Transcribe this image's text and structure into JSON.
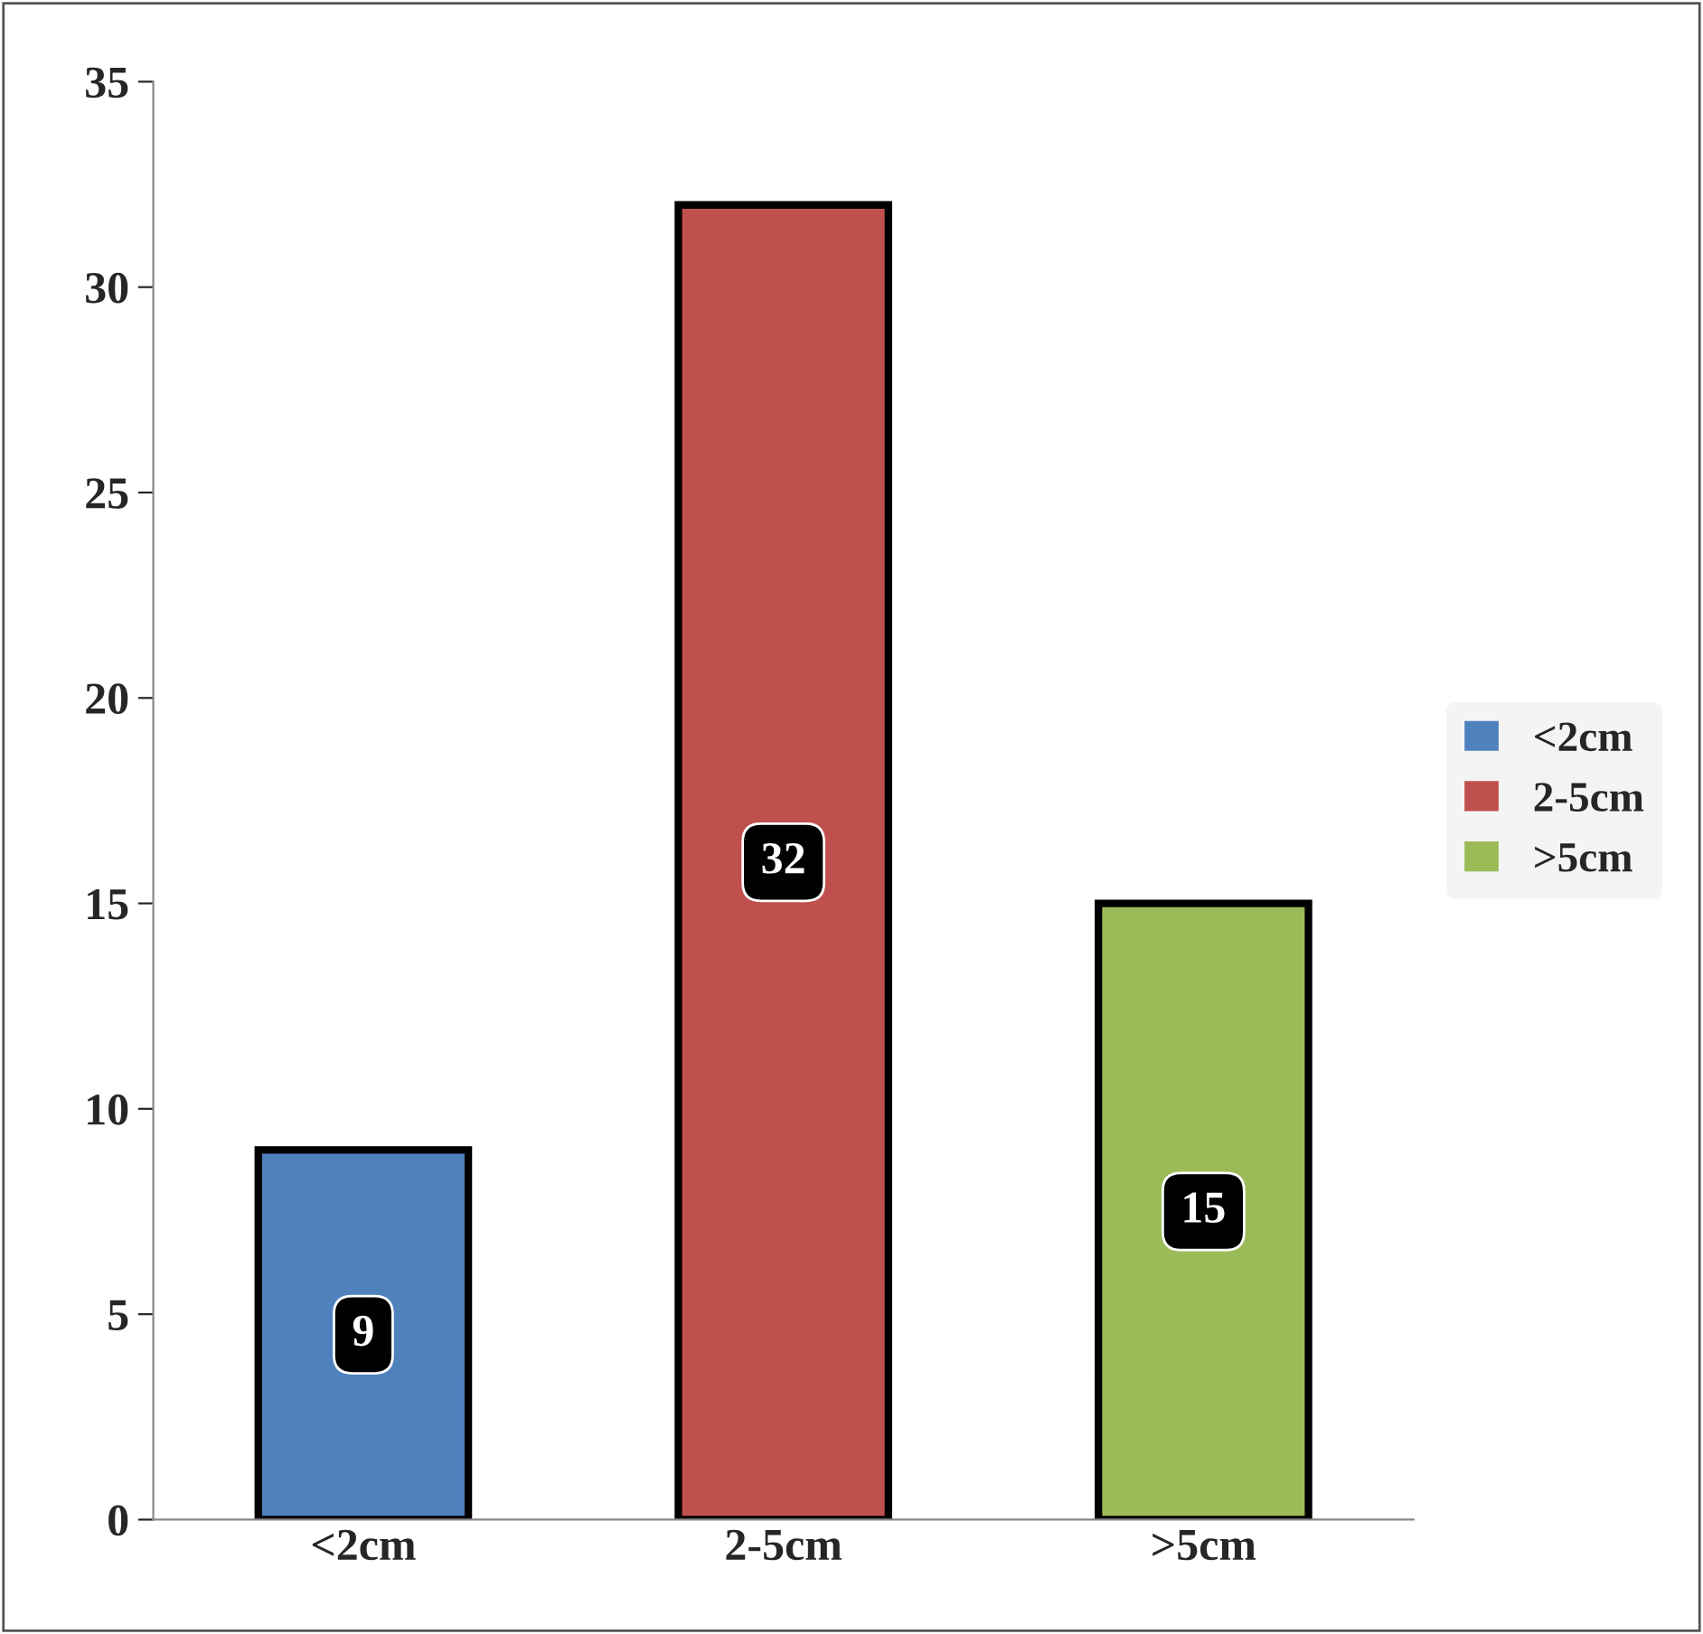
{
  "chart_data": {
    "type": "bar",
    "categories": [
      "<2cm",
      "2-5cm",
      ">5cm"
    ],
    "series": [
      {
        "name": "<2cm",
        "color": "#4f81bd",
        "values": [
          9,
          null,
          null
        ]
      },
      {
        "name": "2-5cm",
        "color": "#c0504d",
        "values": [
          null,
          32,
          null
        ]
      },
      {
        "name": ">5cm",
        "color": "#9bbb59",
        "values": [
          null,
          null,
          15
        ]
      }
    ],
    "ylim": [
      0,
      35
    ],
    "yticks": [
      0,
      5,
      10,
      15,
      20,
      25,
      30,
      35
    ],
    "data_labels": true,
    "legend": "right",
    "grid": false
  }
}
